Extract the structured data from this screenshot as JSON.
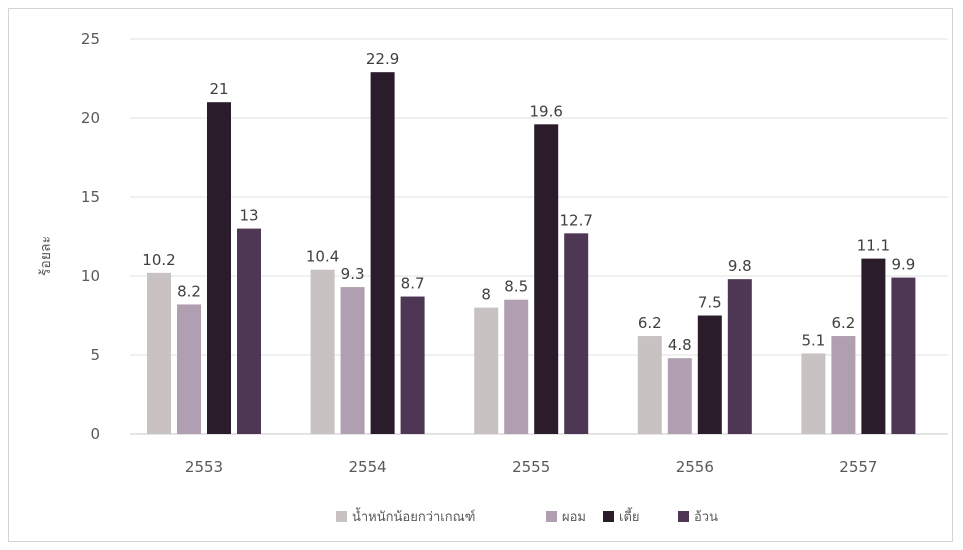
{
  "chart_data": {
    "type": "bar",
    "title": "",
    "xlabel": "",
    "ylabel": "ร้อยละ",
    "categories": [
      "2553",
      "2554",
      "2555",
      "2556",
      "2557"
    ],
    "ylim": [
      0,
      25
    ],
    "yticks": [
      0,
      5,
      10,
      15,
      20,
      25
    ],
    "grid": true,
    "legend_position": "bottom",
    "series": [
      {
        "name": "น้ำหนักน้อยกว่าเกณฑ์",
        "color": "#c9c2c2",
        "values": [
          10.2,
          10.4,
          8,
          6.2,
          5.1
        ]
      },
      {
        "name": "ผอม",
        "color": "#b09fb0",
        "values": [
          8.2,
          9.3,
          8.5,
          4.8,
          6.2
        ]
      },
      {
        "name": "เตี้ย",
        "color": "#2b1c2c",
        "values": [
          21,
          22.9,
          19.6,
          7.5,
          11.1
        ]
      },
      {
        "name": "อ้วน",
        "color": "#4e3754",
        "values": [
          13,
          8.7,
          12.7,
          9.8,
          9.9
        ]
      }
    ]
  }
}
